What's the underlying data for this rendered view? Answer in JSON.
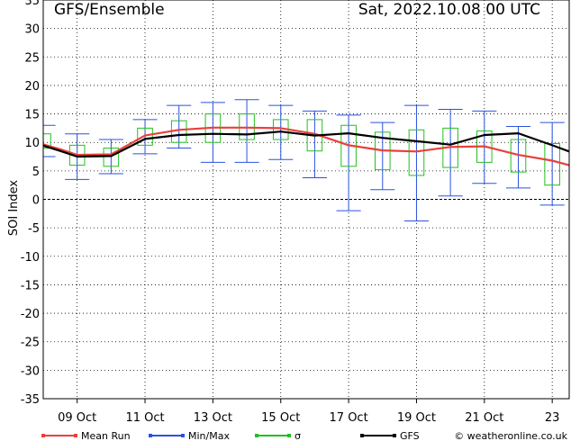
{
  "header": {
    "title": "GFS/Ensemble",
    "date": "Sat, 2022.10.08   00 UTC"
  },
  "legend": [
    {
      "label": "Mean Run",
      "color": "#e8413c",
      "kind": "mean"
    },
    {
      "label": "Min/Max",
      "color": "#2a52e0",
      "kind": "minmax"
    },
    {
      "label": "σ",
      "color": "#22c01e",
      "kind": "sigma"
    },
    {
      "label": "GFS",
      "color": "#000000",
      "kind": "gfs"
    }
  ],
  "footer": {
    "credit": "© weatheronline.co.uk"
  },
  "chart_data": {
    "type": "line",
    "ylabel": "SOI Index",
    "ylim": [
      -35,
      35
    ],
    "yticks": [
      35,
      30,
      25,
      20,
      15,
      10,
      5,
      0,
      -5,
      -10,
      -15,
      -20,
      -25,
      -30,
      -35
    ],
    "xlim": [
      0,
      15.5
    ],
    "xticks": [
      {
        "x": 1,
        "label": "09 Oct"
      },
      {
        "x": 3,
        "label": "11 Oct"
      },
      {
        "x": 5,
        "label": "13 Oct"
      },
      {
        "x": 7,
        "label": "15 Oct"
      },
      {
        "x": 9,
        "label": "17 Oct"
      },
      {
        "x": 11,
        "label": "19 Oct"
      },
      {
        "x": 13,
        "label": "21 Oct"
      },
      {
        "x": 15,
        "label": "23"
      }
    ],
    "boxes": [
      {
        "x": 0.0,
        "min": 7.5,
        "max": 13.0,
        "low": 9.0,
        "high": 11.5
      },
      {
        "x": 1.0,
        "min": 3.5,
        "max": 11.5,
        "low": 6.0,
        "high": 9.5
      },
      {
        "x": 2.0,
        "min": 4.5,
        "max": 10.5,
        "low": 5.8,
        "high": 9.0
      },
      {
        "x": 3.0,
        "min": 8.0,
        "max": 14.0,
        "low": 9.5,
        "high": 12.5
      },
      {
        "x": 4.0,
        "min": 9.0,
        "max": 16.5,
        "low": 10.0,
        "high": 13.8
      },
      {
        "x": 5.0,
        "min": 6.5,
        "max": 17.0,
        "low": 10.0,
        "high": 15.0
      },
      {
        "x": 6.0,
        "min": 6.5,
        "max": 17.5,
        "low": 10.5,
        "high": 15.0
      },
      {
        "x": 7.0,
        "min": 7.0,
        "max": 16.5,
        "low": 10.5,
        "high": 14.0
      },
      {
        "x": 8.0,
        "min": 3.8,
        "max": 15.5,
        "low": 8.5,
        "high": 14.0
      },
      {
        "x": 9.0,
        "min": -2.0,
        "max": 14.8,
        "low": 5.8,
        "high": 13.0
      },
      {
        "x": 10.0,
        "min": 1.7,
        "max": 13.5,
        "low": 5.2,
        "high": 11.8
      },
      {
        "x": 11.0,
        "min": -3.8,
        "max": 16.5,
        "low": 4.2,
        "high": 12.2
      },
      {
        "x": 12.0,
        "min": 0.6,
        "max": 15.8,
        "low": 5.6,
        "high": 12.5
      },
      {
        "x": 13.0,
        "min": 2.8,
        "max": 15.5,
        "low": 6.5,
        "high": 12.0
      },
      {
        "x": 14.0,
        "min": 2.0,
        "max": 12.8,
        "low": 4.8,
        "high": 10.5
      },
      {
        "x": 15.0,
        "min": -1.0,
        "max": 13.5,
        "low": 2.5,
        "high": 9.8
      }
    ],
    "series": [
      {
        "name": "Mean Run",
        "color": "#e8413c",
        "x": [
          -0.2,
          0.5,
          1,
          2,
          3,
          4,
          5,
          6,
          7,
          8,
          9,
          10,
          11,
          12,
          13,
          14,
          15,
          15.5
        ],
        "y": [
          10.0,
          8.8,
          7.8,
          7.9,
          11.2,
          12.2,
          12.6,
          12.6,
          12.5,
          11.5,
          9.5,
          8.6,
          8.4,
          9.2,
          9.3,
          7.8,
          6.8,
          6.0
        ]
      },
      {
        "name": "GFS",
        "color": "#000000",
        "x": [
          -0.2,
          0.5,
          1,
          2,
          3,
          4,
          5,
          6,
          7,
          8,
          9,
          10,
          11,
          12,
          13,
          14,
          15,
          15.5
        ],
        "y": [
          9.8,
          8.5,
          7.5,
          7.6,
          10.6,
          11.3,
          11.5,
          11.4,
          11.9,
          11.2,
          11.6,
          10.8,
          10.2,
          9.6,
          11.3,
          11.6,
          9.5,
          8.4
        ]
      }
    ]
  }
}
